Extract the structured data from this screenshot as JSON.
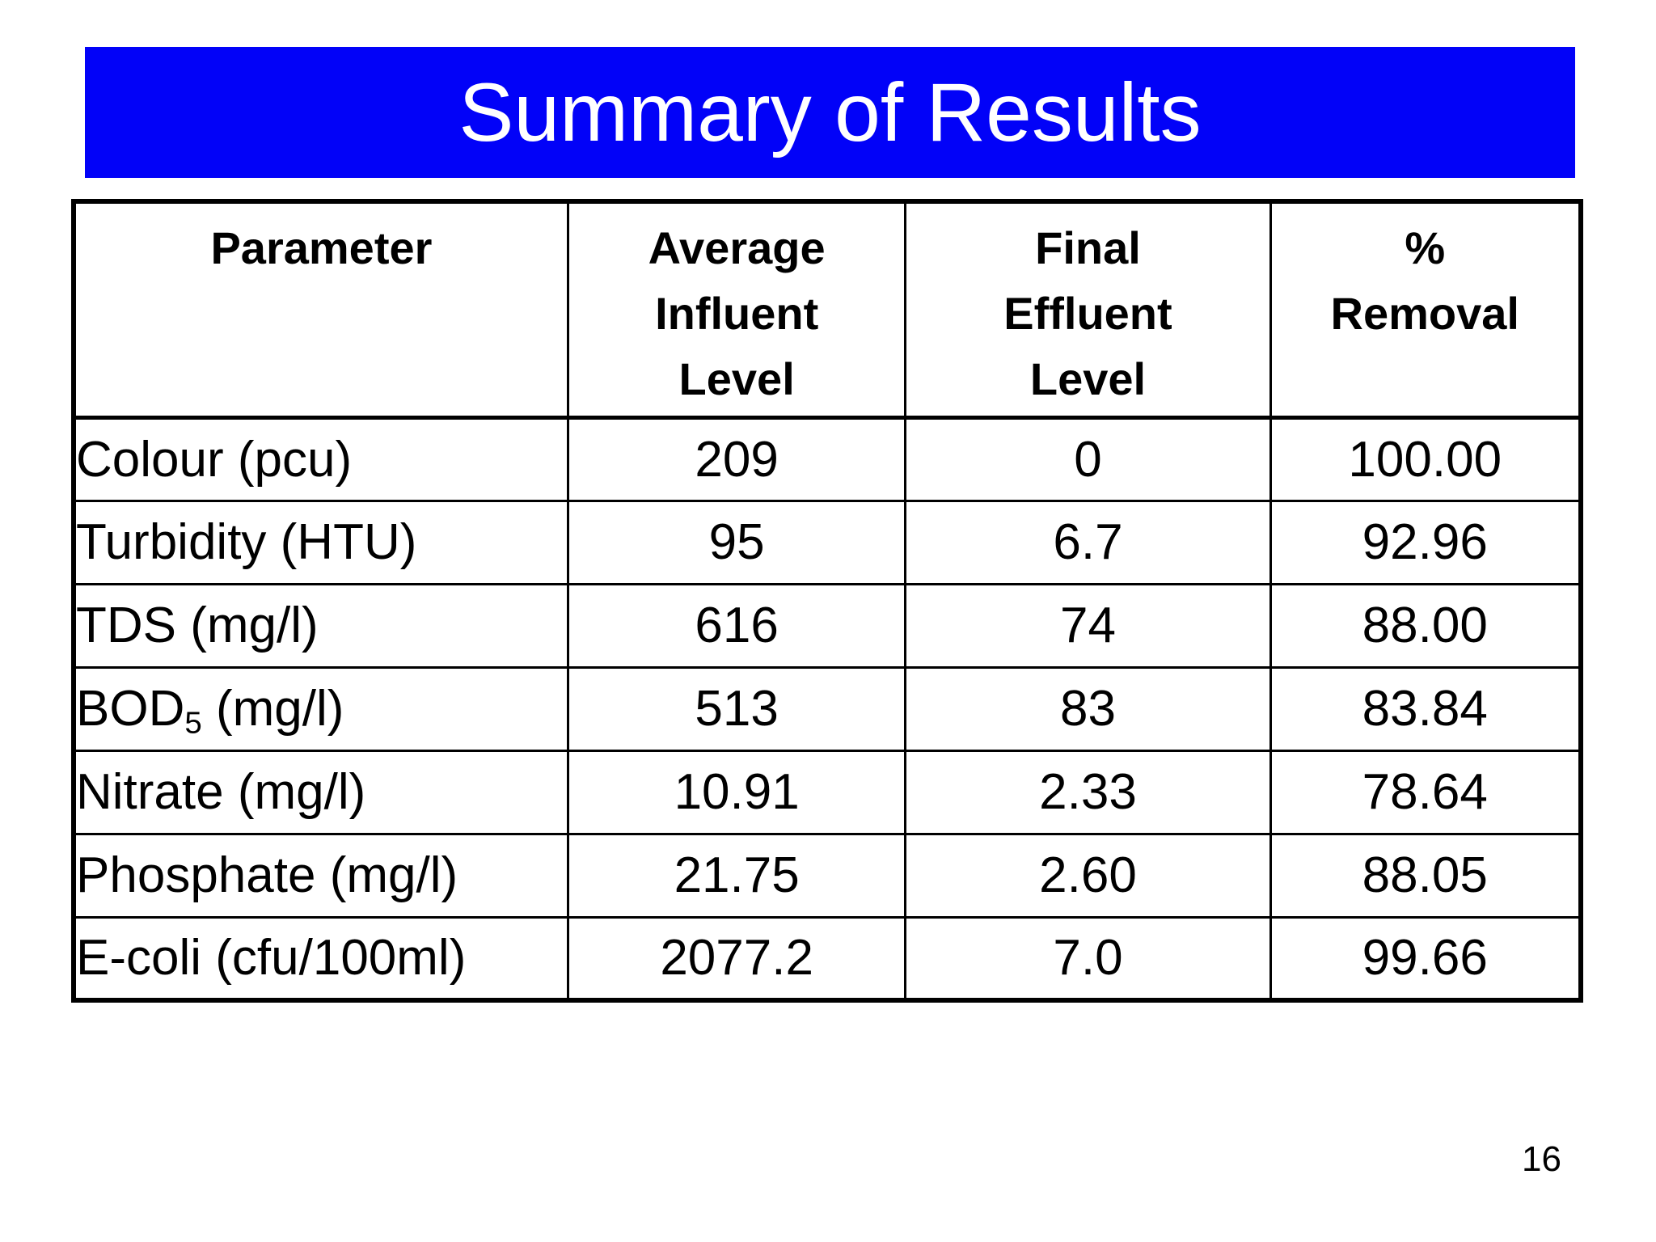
{
  "title": "Summary of Results",
  "page_number": "16",
  "colors": {
    "banner_background": "#0202f8",
    "title_text": "#ffffff",
    "table_border": "#000000",
    "body_text": "#000000",
    "slide_background": "#ffffff"
  },
  "table": {
    "headers": [
      {
        "id": "parameter",
        "lines": [
          "Parameter"
        ]
      },
      {
        "id": "avg-influent-level",
        "lines": [
          "Average",
          "Influent",
          "Level"
        ]
      },
      {
        "id": "final-effluent-level",
        "lines": [
          "Final",
          "Effluent",
          "Level"
        ]
      },
      {
        "id": "percent-removal",
        "lines": [
          "%",
          "Removal"
        ]
      }
    ],
    "rows": [
      {
        "parameter": "Colour (pcu)",
        "influent": "209",
        "effluent": "0",
        "removal": "100.00"
      },
      {
        "parameter": "Turbidity (HTU)",
        "influent": "95",
        "effluent": "6.7",
        "removal": "92.96"
      },
      {
        "parameter": "TDS (mg/l)",
        "influent": "616",
        "effluent": "74",
        "removal": "88.00"
      },
      {
        "parameter": "BOD",
        "parameter_sub": "5",
        "parameter_rest": " (mg/l)",
        "influent": "513",
        "effluent": "83",
        "removal": "83.84"
      },
      {
        "parameter": "Nitrate (mg/l)",
        "influent": "10.91",
        "effluent": "2.33",
        "removal": "78.64"
      },
      {
        "parameter": "Phosphate (mg/l)",
        "influent": "21.75",
        "effluent": "2.60",
        "removal": "88.05"
      },
      {
        "parameter": "E-coli (cfu/100ml)",
        "influent": "2077.2",
        "effluent": "7.0",
        "removal": "99.66"
      }
    ]
  }
}
